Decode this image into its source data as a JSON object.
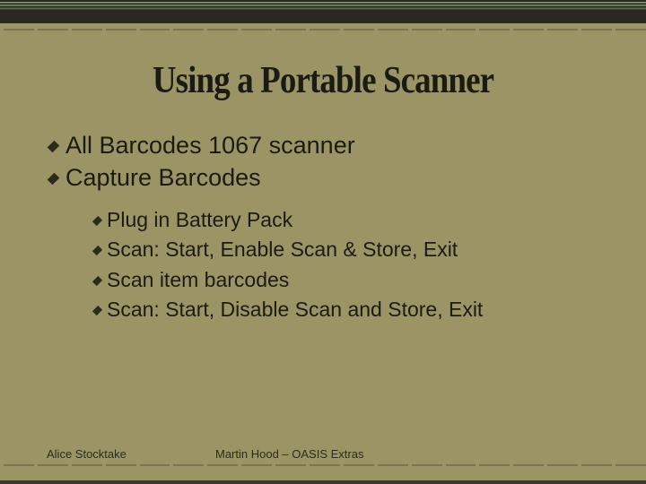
{
  "title": "Using a Portable Scanner",
  "bullets_l1": [
    "All Barcodes 1067 scanner",
    "Capture Barcodes"
  ],
  "bullets_l2": [
    "Plug in Battery Pack",
    "Scan: Start, Enable Scan & Store, Exit",
    "Scan item barcodes",
    "Scan: Start, Disable Scan and Store, Exit"
  ],
  "footer": {
    "left": "Alice Stocktake",
    "right": "Martin Hood – OASIS Extras"
  },
  "colors": {
    "background": "#9b9566",
    "text": "#1b1b14",
    "bullet": "#2b2b1a"
  },
  "fonts": {
    "title_family": "Georgia serif condensed",
    "title_size_pt": 32,
    "body_family": "Arial",
    "l1_size_pt": 20,
    "l2_size_pt": 17,
    "footer_size_pt": 10
  }
}
